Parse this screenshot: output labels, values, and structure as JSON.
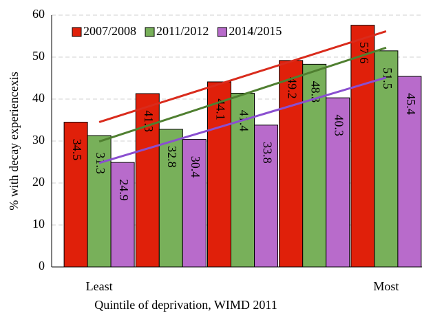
{
  "chart_data": {
    "type": "bar",
    "x_label": "Quintile of deprivation, WIMD 2011",
    "y_label": "% with decay experiencexis",
    "categories": [
      "Least",
      null,
      null,
      null,
      "Most"
    ],
    "series": [
      {
        "name": "2007/2008",
        "color": "#e0200a",
        "trend_color": "#d92b1c",
        "values": [
          34.5,
          41.3,
          44.1,
          49.2,
          57.6
        ]
      },
      {
        "name": "2011/2012",
        "color": "#78b05a",
        "trend_color": "#4f7f30",
        "values": [
          31.3,
          32.8,
          41.4,
          48.3,
          51.5
        ]
      },
      {
        "name": "2014/2015",
        "color": "#b86bcb",
        "trend_color": "#8a4fd0",
        "values": [
          24.9,
          30.4,
          33.8,
          40.3,
          45.4
        ]
      }
    ],
    "ylim": [
      0,
      60
    ],
    "yticks": [
      0,
      10,
      20,
      30,
      40,
      50,
      60
    ],
    "grid": true,
    "trendline": true,
    "legend": "top-left",
    "data_labels": true
  }
}
